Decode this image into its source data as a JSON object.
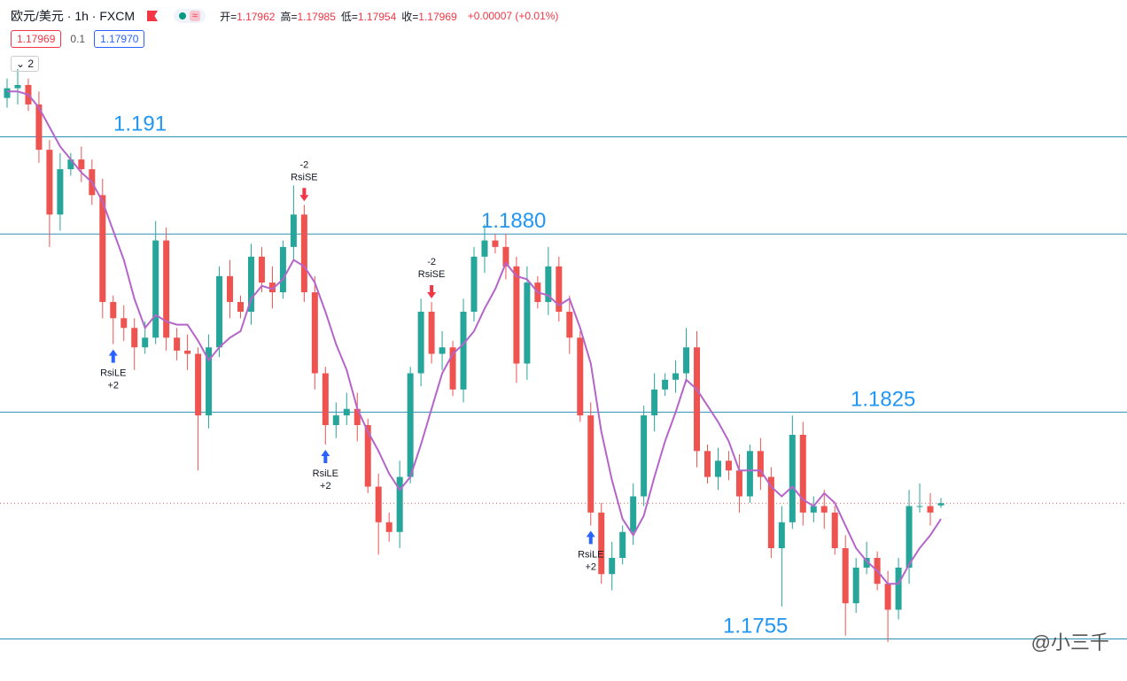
{
  "header": {
    "title": "欧元/美元 · 1h · FXCM",
    "ohlc": [
      {
        "label": "开=",
        "value": 1.17962
      },
      {
        "label": "高=",
        "value": 1.17985
      },
      {
        "label": "低=",
        "value": 1.17954
      },
      {
        "label": "收=",
        "value": 1.17969
      }
    ],
    "change": "+0.00007 (+0.01%)",
    "bid": 1.17969,
    "spread": 0.1,
    "ask": "1.17970",
    "collapsed": 2
  },
  "watermark": "@小三千",
  "chart_data": {
    "type": "candlestick",
    "ylim": [
      1.1742,
      1.1929
    ],
    "colors": {
      "up": "#26a69a",
      "down": "#ef5350"
    },
    "level_color": "#2f8fb5",
    "levels": [
      1.191,
      {
        "value": 1.188,
        "label": "1.1880"
      },
      1.1825,
      1.1755
    ],
    "open": [
      1.1922,
      1.1925,
      1.1926,
      1.192,
      1.1906,
      1.1886,
      1.19,
      1.1903,
      1.19,
      1.1892,
      1.1859,
      1.1854,
      1.1851,
      1.1845,
      1.1848,
      1.1878,
      1.1848,
      1.1844,
      1.1843,
      1.1824,
      1.1845,
      1.1867,
      1.1859,
      1.1856,
      1.1873,
      1.1865,
      1.1862,
      1.1876,
      1.1886,
      1.1862,
      1.1837,
      1.1821,
      1.1824,
      1.1826,
      1.1821,
      1.1802,
      1.1791,
      1.1788,
      1.1805,
      1.1837,
      1.1856,
      1.1843,
      1.1845,
      1.1832,
      1.1856,
      1.1873,
      1.1878,
      1.1876,
      1.187,
      1.184,
      1.1865,
      1.1859,
      1.187,
      1.1856,
      1.1848,
      1.1824,
      1.1794,
      1.1775,
      1.178,
      1.1788,
      1.1799,
      1.1824,
      1.1832,
      1.1835,
      1.1837,
      1.1845,
      1.1813,
      1.1805,
      1.181,
      1.1807,
      1.1799,
      1.1813,
      1.1805,
      1.1783,
      1.1791,
      1.1818,
      1.1794,
      1.1796,
      1.1794,
      1.1783,
      1.1766,
      1.1777,
      1.178,
      1.1772,
      1.1764,
      1.1777,
      1.1796,
      1.1796,
      1.17962
    ],
    "high": [
      1.1928,
      1.1931,
      1.1928,
      1.1924,
      1.1909,
      1.1905,
      1.1905,
      1.1907,
      1.1903,
      1.1897,
      1.1861,
      1.1858,
      1.1854,
      1.1853,
      1.1884,
      1.1882,
      1.1851,
      1.1849,
      1.1845,
      1.1849,
      1.187,
      1.1872,
      1.1861,
      1.1877,
      1.1876,
      1.187,
      1.1878,
      1.1895,
      1.1889,
      1.1867,
      1.1839,
      1.1828,
      1.1831,
      1.1831,
      1.1823,
      1.1806,
      1.1794,
      1.181,
      1.1839,
      1.186,
      1.1859,
      1.185,
      1.1847,
      1.186,
      1.1876,
      1.1883,
      1.188,
      1.188,
      1.1873,
      1.187,
      1.1867,
      1.1876,
      1.1873,
      1.1861,
      1.185,
      1.1828,
      1.1797,
      1.1785,
      1.179,
      1.1803,
      1.1827,
      1.1837,
      1.1837,
      1.1841,
      1.1851,
      1.185,
      1.1815,
      1.1814,
      1.1813,
      1.1812,
      1.1815,
      1.1817,
      1.1808,
      1.1796,
      1.1824,
      1.1822,
      1.1799,
      1.1801,
      1.1796,
      1.1787,
      1.178,
      1.1785,
      1.1782,
      1.1776,
      1.178,
      1.1801,
      1.1803,
      1.18,
      1.17985
    ],
    "low": [
      1.1919,
      1.192,
      1.1918,
      1.1902,
      1.1876,
      1.1881,
      1.1898,
      1.1896,
      1.1889,
      1.1854,
      1.1846,
      1.1847,
      1.1838,
      1.1843,
      1.1846,
      1.1844,
      1.1841,
      1.1838,
      1.1807,
      1.182,
      1.1842,
      1.1854,
      1.1854,
      1.1852,
      1.1862,
      1.1857,
      1.186,
      1.1872,
      1.1859,
      1.1832,
      1.1815,
      1.1817,
      1.1821,
      1.1816,
      1.18,
      1.1781,
      1.1785,
      1.1783,
      1.1803,
      1.1833,
      1.184,
      1.1838,
      1.183,
      1.1828,
      1.1853,
      1.1868,
      1.1874,
      1.1866,
      1.1834,
      1.1835,
      1.1857,
      1.1855,
      1.1853,
      1.1843,
      1.1822,
      1.179,
      1.1772,
      1.177,
      1.1778,
      1.1784,
      1.1796,
      1.1819,
      1.183,
      1.1831,
      1.1834,
      1.1808,
      1.1803,
      1.1801,
      1.1804,
      1.1794,
      1.1797,
      1.1801,
      1.178,
      1.1765,
      1.1789,
      1.179,
      1.1791,
      1.1789,
      1.1781,
      1.1756,
      1.1763,
      1.1775,
      1.177,
      1.1754,
      1.1761,
      1.1772,
      1.1794,
      1.179,
      1.17954
    ],
    "close": [
      1.1925,
      1.1926,
      1.192,
      1.1906,
      1.1886,
      1.19,
      1.1903,
      1.19,
      1.1892,
      1.1859,
      1.1854,
      1.1851,
      1.1845,
      1.1848,
      1.1878,
      1.1848,
      1.1844,
      1.1843,
      1.1824,
      1.1845,
      1.1867,
      1.1859,
      1.1856,
      1.1873,
      1.1865,
      1.1862,
      1.1876,
      1.1886,
      1.1862,
      1.1837,
      1.1821,
      1.1824,
      1.1826,
      1.1821,
      1.1802,
      1.1791,
      1.1788,
      1.1805,
      1.1837,
      1.1856,
      1.1843,
      1.1845,
      1.1832,
      1.1856,
      1.1873,
      1.1878,
      1.1876,
      1.187,
      1.184,
      1.1865,
      1.1859,
      1.187,
      1.1856,
      1.1848,
      1.1824,
      1.1794,
      1.1775,
      1.178,
      1.1788,
      1.1799,
      1.1824,
      1.1832,
      1.1835,
      1.1837,
      1.1845,
      1.1813,
      1.1805,
      1.181,
      1.1807,
      1.1799,
      1.1813,
      1.1805,
      1.1783,
      1.1791,
      1.1818,
      1.1794,
      1.1796,
      1.1794,
      1.1783,
      1.1766,
      1.1777,
      1.178,
      1.1772,
      1.1764,
      1.1777,
      1.1796,
      1.1796,
      1.1794,
      1.17969
    ],
    "ma": {
      "color": "#b565c9",
      "values": [
        1.1924,
        1.1924,
        1.1923,
        1.1919,
        1.1913,
        1.1907,
        1.1903,
        1.1899,
        1.1896,
        1.189,
        1.1881,
        1.1872,
        1.186,
        1.1851,
        1.1855,
        1.1853,
        1.1852,
        1.1852,
        1.1847,
        1.1841,
        1.1845,
        1.1848,
        1.185,
        1.186,
        1.1864,
        1.1863,
        1.1866,
        1.1872,
        1.187,
        1.1865,
        1.1856,
        1.1846,
        1.1838,
        1.1826,
        1.1819,
        1.1813,
        1.1806,
        1.1801,
        1.1805,
        1.1815,
        1.1826,
        1.1837,
        1.1843,
        1.1846,
        1.185,
        1.1857,
        1.1863,
        1.1871,
        1.1867,
        1.1866,
        1.1862,
        1.1861,
        1.1858,
        1.186,
        1.1851,
        1.184,
        1.1819,
        1.1804,
        1.1792,
        1.1787,
        1.1793,
        1.1805,
        1.1816,
        1.1825,
        1.1835,
        1.1832,
        1.1827,
        1.1822,
        1.1816,
        1.1807,
        1.1807,
        1.1807,
        1.1802,
        1.1799,
        1.1802,
        1.1798,
        1.1796,
        1.18,
        1.1797,
        1.179,
        1.1783,
        1.1779,
        1.1776,
        1.1772,
        1.1772,
        1.1778,
        1.1783,
        1.1787,
        1.1792
      ]
    },
    "signals": [
      {
        "label": "RsiLE",
        "qty": "+2"
      },
      {
        "label": "RsiSE",
        "qty": "-2"
      },
      {
        "label": "RsiLE",
        "qty": "+2"
      },
      {
        "label": "RsiSE",
        "qty": "-2"
      },
      {
        "label": "RsiLE",
        "qty": "+2"
      }
    ]
  }
}
